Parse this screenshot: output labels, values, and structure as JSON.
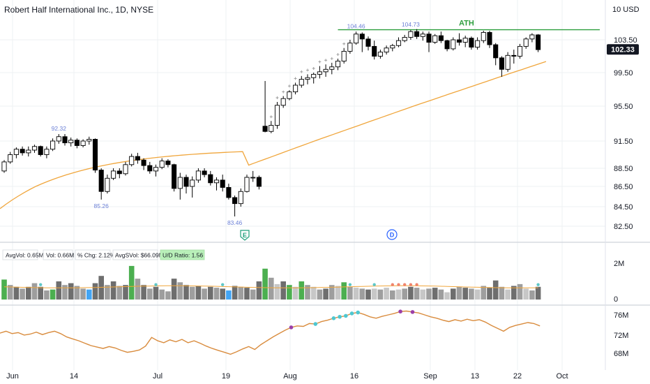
{
  "header": {
    "title": "Robert Half International Inc., 1D, NYSE",
    "currency_badge": "10 USD"
  },
  "chart_data": {
    "type": "candlestick",
    "symbol_line": "Robert Half International Inc., 1D, NYSE",
    "price_axis": {
      "ticks": [
        "103.50",
        "99.50",
        "95.50",
        "91.50",
        "88.50",
        "86.50",
        "84.50",
        "82.50"
      ],
      "last_price": "102.33"
    },
    "time_axis": [
      "Jun",
      "14",
      "Jul",
      "19",
      "Aug",
      "16",
      "Sep",
      "13",
      "22",
      "Oct"
    ],
    "annotations": [
      "92.32",
      "85.26",
      "83.46",
      "104.46",
      "104.73"
    ],
    "ath_label": "ATH",
    "event_markers": [
      "E",
      "D"
    ],
    "ohlc": [
      [
        88.2,
        89.4,
        88.0,
        89.2
      ],
      [
        89.2,
        90.3,
        89.0,
        90.0
      ],
      [
        90.0,
        90.8,
        89.6,
        90.6
      ],
      [
        90.6,
        90.9,
        89.9,
        90.2
      ],
      [
        90.2,
        90.9,
        89.8,
        90.5
      ],
      [
        90.5,
        91.1,
        90.2,
        90.9
      ],
      [
        90.9,
        91.0,
        89.8,
        90.0
      ],
      [
        90.0,
        90.9,
        89.6,
        90.6
      ],
      [
        90.6,
        91.8,
        90.4,
        91.5
      ],
      [
        91.5,
        92.3,
        91.2,
        92.0
      ],
      [
        92.0,
        92.3,
        91.0,
        91.3
      ],
      [
        91.3,
        91.9,
        90.9,
        91.6
      ],
      [
        91.6,
        91.8,
        90.7,
        91.0
      ],
      [
        91.0,
        91.7,
        90.8,
        91.5
      ],
      [
        91.5,
        92.0,
        91.1,
        91.7
      ],
      [
        91.7,
        91.8,
        88.0,
        88.3
      ],
      [
        88.3,
        88.5,
        85.2,
        86.0
      ],
      [
        86.0,
        87.8,
        85.8,
        87.4
      ],
      [
        87.4,
        88.5,
        87.2,
        88.2
      ],
      [
        88.2,
        88.5,
        87.4,
        87.9
      ],
      [
        87.9,
        89.2,
        87.7,
        88.9
      ],
      [
        88.9,
        90.1,
        88.7,
        89.8
      ],
      [
        89.8,
        90.2,
        89.0,
        89.4
      ],
      [
        89.4,
        89.6,
        88.3,
        88.8
      ],
      [
        88.8,
        89.2,
        87.9,
        88.2
      ],
      [
        88.2,
        88.9,
        87.6,
        88.6
      ],
      [
        88.6,
        89.6,
        88.4,
        89.3
      ],
      [
        89.3,
        89.5,
        88.6,
        88.9
      ],
      [
        88.9,
        89.0,
        86.0,
        86.3
      ],
      [
        86.3,
        88.0,
        85.2,
        87.5
      ],
      [
        87.5,
        87.8,
        85.8,
        86.5
      ],
      [
        86.5,
        87.6,
        85.4,
        87.2
      ],
      [
        87.2,
        88.5,
        86.9,
        88.2
      ],
      [
        88.2,
        88.5,
        87.5,
        87.8
      ],
      [
        87.8,
        88.2,
        86.6,
        86.9
      ],
      [
        86.9,
        87.5,
        86.1,
        87.2
      ],
      [
        87.2,
        87.8,
        86.0,
        86.4
      ],
      [
        86.4,
        86.8,
        85.2,
        85.4
      ],
      [
        85.4,
        85.6,
        83.5,
        84.8
      ],
      [
        84.8,
        86.3,
        84.5,
        86.0
      ],
      [
        86.0,
        87.8,
        85.9,
        87.5
      ],
      [
        87.5,
        88.2,
        87.0,
        87.5
      ],
      [
        87.5,
        87.7,
        86.2,
        86.5
      ],
      [
        93.2,
        98.5,
        92.5,
        92.6
      ],
      [
        92.6,
        93.8,
        92.4,
        93.3
      ],
      [
        93.3,
        96.0,
        92.9,
        95.6
      ],
      [
        95.6,
        96.7,
        95.3,
        96.4
      ],
      [
        96.4,
        97.4,
        96.2,
        97.2
      ],
      [
        97.2,
        98.3,
        96.9,
        98.0
      ],
      [
        98.0,
        99.1,
        97.7,
        98.7
      ],
      [
        98.7,
        99.3,
        98.1,
        98.9
      ],
      [
        98.9,
        99.5,
        98.2,
        99.3
      ],
      [
        99.3,
        100.3,
        98.8,
        99.6
      ],
      [
        99.6,
        100.5,
        99.0,
        99.9
      ],
      [
        99.9,
        100.7,
        99.3,
        100.2
      ],
      [
        100.2,
        101.2,
        99.8,
        100.9
      ],
      [
        100.9,
        102.5,
        100.6,
        102.1
      ],
      [
        102.1,
        103.5,
        101.8,
        103.1
      ],
      [
        103.1,
        104.5,
        102.9,
        104.2
      ],
      [
        104.2,
        104.4,
        102.0,
        103.6
      ],
      [
        103.6,
        103.9,
        102.2,
        102.7
      ],
      [
        102.7,
        103.4,
        101.1,
        101.5
      ],
      [
        101.5,
        102.3,
        101.2,
        102.0
      ],
      [
        102.0,
        102.8,
        101.7,
        102.5
      ],
      [
        102.5,
        103.0,
        102.1,
        102.8
      ],
      [
        102.8,
        103.8,
        102.6,
        103.4
      ],
      [
        103.4,
        104.1,
        103.2,
        103.8
      ],
      [
        103.8,
        104.7,
        103.5,
        104.5
      ],
      [
        104.5,
        104.8,
        103.6,
        103.9
      ],
      [
        103.9,
        104.5,
        103.4,
        104.2
      ],
      [
        104.2,
        104.5,
        102.0,
        103.2
      ],
      [
        103.2,
        104.2,
        103.0,
        104.0
      ],
      [
        104.0,
        104.5,
        103.1,
        103.4
      ],
      [
        103.4,
        103.5,
        102.1,
        102.4
      ],
      [
        102.4,
        103.8,
        102.2,
        103.5
      ],
      [
        103.5,
        104.3,
        102.8,
        103.2
      ],
      [
        103.2,
        104.0,
        102.6,
        103.7
      ],
      [
        103.7,
        103.9,
        102.3,
        102.6
      ],
      [
        102.6,
        103.8,
        102.3,
        103.4
      ],
      [
        103.4,
        104.6,
        103.1,
        104.4
      ],
      [
        104.4,
        104.6,
        102.5,
        102.9
      ],
      [
        102.9,
        103.1,
        100.4,
        101.3
      ],
      [
        101.3,
        101.5,
        99.0,
        99.9
      ],
      [
        99.9,
        102.0,
        99.6,
        101.6
      ],
      [
        101.6,
        102.3,
        100.6,
        101.5
      ],
      [
        101.5,
        103.0,
        101.2,
        102.7
      ],
      [
        102.7,
        103.8,
        102.4,
        103.6
      ],
      [
        103.6,
        104.3,
        103.2,
        104.1
      ],
      [
        104.1,
        104.2,
        102.0,
        102.3
      ]
    ],
    "volume": [
      {
        "v": 1.1,
        "c": "green"
      },
      {
        "v": 0.8,
        "c": "grey"
      },
      {
        "v": 0.7,
        "c": "dgrey"
      },
      {
        "v": 0.6,
        "c": "grey"
      },
      {
        "v": 0.7,
        "c": "dgrey"
      },
      {
        "v": 0.9,
        "c": "grey"
      },
      {
        "v": 0.7,
        "c": "dgrey"
      },
      {
        "v": 0.5,
        "c": "grey"
      },
      {
        "v": 0.55,
        "c": "green"
      },
      {
        "v": 1.0,
        "c": "dgrey"
      },
      {
        "v": 0.8,
        "c": "grey"
      },
      {
        "v": 0.9,
        "c": "dgrey"
      },
      {
        "v": 0.75,
        "c": "grey"
      },
      {
        "v": 0.6,
        "c": "grey"
      },
      {
        "v": 0.55,
        "c": "blue"
      },
      {
        "v": 0.9,
        "c": "dgrey"
      },
      {
        "v": 1.3,
        "c": "dgrey"
      },
      {
        "v": 0.8,
        "c": "grey"
      },
      {
        "v": 1.0,
        "c": "dgrey"
      },
      {
        "v": 0.75,
        "c": "grey"
      },
      {
        "v": 0.8,
        "c": "dgrey"
      },
      {
        "v": 1.85,
        "c": "green"
      },
      {
        "v": 1.15,
        "c": "grey"
      },
      {
        "v": 0.8,
        "c": "dgrey"
      },
      {
        "v": 0.6,
        "c": "grey"
      },
      {
        "v": 0.7,
        "c": "dgrey"
      },
      {
        "v": 0.55,
        "c": "grey"
      },
      {
        "v": 0.45,
        "c": "grey"
      },
      {
        "v": 1.15,
        "c": "dgrey"
      },
      {
        "v": 0.95,
        "c": "grey"
      },
      {
        "v": 0.8,
        "c": "dgrey"
      },
      {
        "v": 0.7,
        "c": "grey"
      },
      {
        "v": 0.75,
        "c": "dgrey"
      },
      {
        "v": 0.6,
        "c": "grey"
      },
      {
        "v": 0.7,
        "c": "dgrey"
      },
      {
        "v": 0.65,
        "c": "grey"
      },
      {
        "v": 0.6,
        "c": "dgrey"
      },
      {
        "v": 0.5,
        "c": "blue"
      },
      {
        "v": 0.75,
        "c": "dgrey"
      },
      {
        "v": 0.7,
        "c": "grey"
      },
      {
        "v": 0.65,
        "c": "dgrey"
      },
      {
        "v": 0.55,
        "c": "grey"
      },
      {
        "v": 1.0,
        "c": "dgrey"
      },
      {
        "v": 1.7,
        "c": "green"
      },
      {
        "v": 1.2,
        "c": "grey"
      },
      {
        "v": 0.85,
        "c": "lgrey"
      },
      {
        "v": 1.0,
        "c": "dgrey"
      },
      {
        "v": 0.8,
        "c": "green"
      },
      {
        "v": 0.7,
        "c": "lgrey"
      },
      {
        "v": 1.0,
        "c": "green"
      },
      {
        "v": 0.8,
        "c": "grey"
      },
      {
        "v": 0.7,
        "c": "lgrey"
      },
      {
        "v": 0.55,
        "c": "grey"
      },
      {
        "v": 0.6,
        "c": "dgrey"
      },
      {
        "v": 0.8,
        "c": "grey"
      },
      {
        "v": 0.75,
        "c": "lgrey"
      },
      {
        "v": 0.95,
        "c": "green"
      },
      {
        "v": 0.7,
        "c": "grey"
      },
      {
        "v": 0.65,
        "c": "lgrey"
      },
      {
        "v": 0.6,
        "c": "grey"
      },
      {
        "v": 0.55,
        "c": "dgrey"
      },
      {
        "v": 0.6,
        "c": "lgrey"
      },
      {
        "v": 0.55,
        "c": "grey"
      },
      {
        "v": 0.65,
        "c": "lgrey"
      },
      {
        "v": 0.5,
        "c": "grey"
      },
      {
        "v": 0.55,
        "c": "lgrey"
      },
      {
        "v": 0.6,
        "c": "grey"
      },
      {
        "v": 0.7,
        "c": "dgrey"
      },
      {
        "v": 0.65,
        "c": "grey"
      },
      {
        "v": 0.55,
        "c": "lgrey"
      },
      {
        "v": 0.6,
        "c": "grey"
      },
      {
        "v": 0.65,
        "c": "dgrey"
      },
      {
        "v": 0.55,
        "c": "grey"
      },
      {
        "v": 0.4,
        "c": "lgrey"
      },
      {
        "v": 0.6,
        "c": "dgrey"
      },
      {
        "v": 0.7,
        "c": "grey"
      },
      {
        "v": 0.65,
        "c": "dgrey"
      },
      {
        "v": 0.6,
        "c": "grey"
      },
      {
        "v": 0.55,
        "c": "lgrey"
      },
      {
        "v": 0.75,
        "c": "grey"
      },
      {
        "v": 0.65,
        "c": "dgrey"
      },
      {
        "v": 1.05,
        "c": "dgrey"
      },
      {
        "v": 0.7,
        "c": "grey"
      },
      {
        "v": 0.55,
        "c": "lgrey"
      },
      {
        "v": 0.75,
        "c": "dgrey"
      },
      {
        "v": 0.85,
        "c": "grey"
      },
      {
        "v": 0.6,
        "c": "lgrey"
      },
      {
        "v": 0.5,
        "c": "grey"
      },
      {
        "v": 0.7,
        "c": "dgrey"
      }
    ],
    "volume_axis_ticks": [
      "2M",
      "0"
    ],
    "volume_stats": [
      "AvgVol: 0.65M",
      "Vol: 0.66M",
      "% Chg: 2.12%",
      "AvgSVol: $66.09M",
      "U/D Ratio: 1.56"
    ],
    "rs_axis_ticks": [
      "76M",
      "72M",
      "68M"
    ],
    "grid": true,
    "legend": "none"
  },
  "colors": {
    "bull_body": "#ffffff",
    "bear_body": "#000000",
    "candle_outline": "#000000",
    "ma_line": "#f0a63c",
    "ath_line": "#2e9e3e",
    "ath_text": "#2e9e3e",
    "volume_green": "#4caf50",
    "volume_grey": "#9e9e9e",
    "volume_dark_grey": "#6e6e6e",
    "volume_light_grey": "#c7c7c7",
    "volume_blue": "#42a5f5",
    "rs_line": "#d98c3e",
    "annotation_text": "#6a7fd6",
    "ud_badge": "#b9f0b9",
    "grid": "#eef0f3",
    "axis_text": "#131722",
    "price_label_bg": "#131722"
  }
}
